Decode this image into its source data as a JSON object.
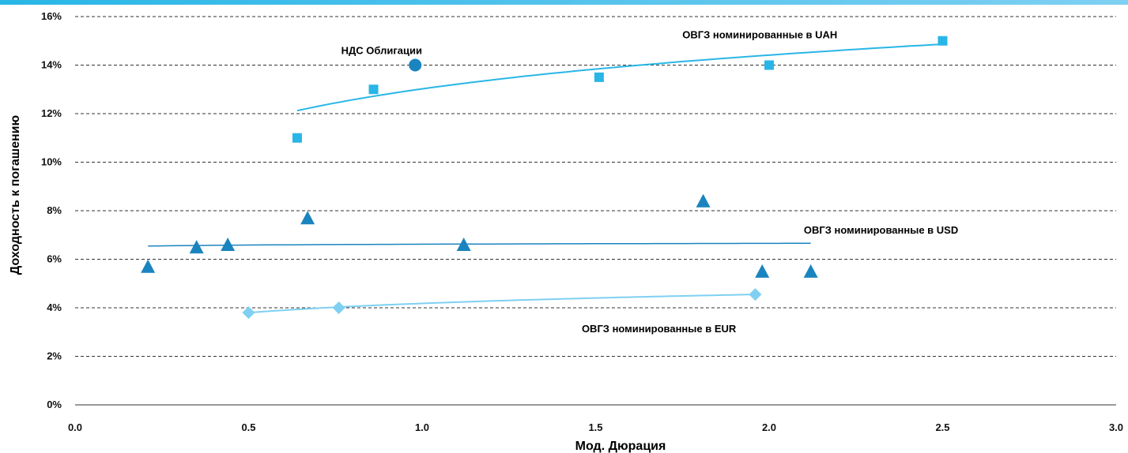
{
  "chart_data": {
    "type": "scatter",
    "title": "",
    "xlabel": "Мод. Дюрация",
    "ylabel": "Доходность к погашению",
    "xlim": [
      0,
      3
    ],
    "ylim": [
      0,
      16
    ],
    "x_ticks": [
      "0.0",
      "0.5",
      "1.0",
      "1.5",
      "2.0",
      "2.5",
      "3.0"
    ],
    "y_ticks": [
      "0%",
      "2%",
      "4%",
      "6%",
      "8%",
      "10%",
      "12%",
      "14%",
      "16%"
    ],
    "grid": "horizontal dashed",
    "series": [
      {
        "name": "ОВГЗ номинированные в UAH",
        "marker": "square",
        "color": "#29b6e6",
        "points": [
          [
            0.64,
            11.0
          ],
          [
            0.86,
            13.0
          ],
          [
            1.51,
            13.5
          ],
          [
            2.0,
            14.0
          ],
          [
            2.5,
            15.0
          ]
        ],
        "trend": "log"
      },
      {
        "name": "ОВГЗ номинированные в USD",
        "marker": "triangle",
        "color": "#1a84bf",
        "points": [
          [
            0.21,
            5.7
          ],
          [
            0.35,
            6.5
          ],
          [
            0.44,
            6.6
          ],
          [
            0.67,
            7.7
          ],
          [
            1.12,
            6.6
          ],
          [
            1.81,
            8.4
          ],
          [
            1.98,
            5.5
          ],
          [
            2.12,
            5.5
          ]
        ],
        "trend": "log"
      },
      {
        "name": "ОВГЗ номинированные в EUR",
        "marker": "diamond",
        "color": "#7fd0f2",
        "points": [
          [
            0.5,
            3.8
          ],
          [
            0.76,
            4.0
          ],
          [
            1.96,
            4.55
          ]
        ],
        "trend": "log"
      },
      {
        "name": "НДС Облигации",
        "marker": "circle",
        "color": "#1a84bf",
        "points": [
          [
            0.98,
            14.0
          ]
        ]
      }
    ],
    "trendlines": [
      {
        "series": "ОВГЗ номинированные в UAH",
        "x_range": [
          0.64,
          2.5
        ],
        "a": 13.02,
        "b": 2.01,
        "color": "#29b6e6",
        "width": 2
      },
      {
        "series": "ОВГЗ номинированные в USD",
        "x_range": [
          0.21,
          2.12
        ],
        "a": 6.62,
        "b": 0.05,
        "color": "#1a84bf",
        "width": 1.5
      },
      {
        "series": "ОВГЗ номинированные в EUR",
        "x_range": [
          0.5,
          1.96
        ],
        "a": 4.18,
        "b": 0.55,
        "color": "#7fd0f2",
        "width": 2
      }
    ],
    "annotations": [
      {
        "text": "НДС  Облигации",
        "x": 1.0,
        "y": 14.45,
        "anchor": "end"
      },
      {
        "text": "ОВГЗ номинированные в UAH",
        "x": 1.75,
        "y": 15.1,
        "anchor": "start"
      },
      {
        "text": "ОВГЗ номинированные в USD",
        "x": 2.1,
        "y": 7.05,
        "anchor": "start"
      },
      {
        "text": "ОВГЗ номинированные в EUR",
        "x": 1.46,
        "y": 3.0,
        "anchor": "start"
      }
    ]
  },
  "colors": {
    "top_bar_left": "#29b6e6",
    "top_bar_right": "#7fd0f2",
    "grid": "#333333",
    "axis": "#333333"
  }
}
